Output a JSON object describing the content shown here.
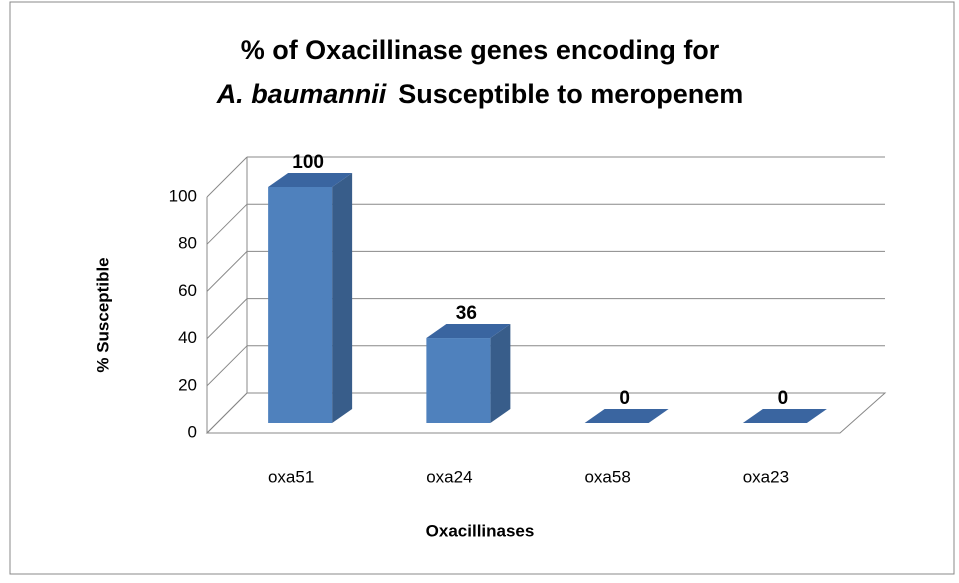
{
  "chart_data": {
    "type": "bar3d",
    "title": [
      "% of Oxacillinase genes encoding for",
      "A. baumannii",
      "Susceptible to meropenem"
    ],
    "x_label": "Oxacillinases",
    "y_label": "% Susceptible",
    "categories": [
      "oxa51",
      "oxa24",
      "oxa58",
      "oxa23"
    ],
    "values": [
      100,
      36,
      0,
      0
    ],
    "color": "#4f81bd",
    "ylim": [
      0,
      100
    ],
    "yticks": [
      0,
      20,
      40,
      60,
      80,
      100
    ],
    "grid": true
  }
}
